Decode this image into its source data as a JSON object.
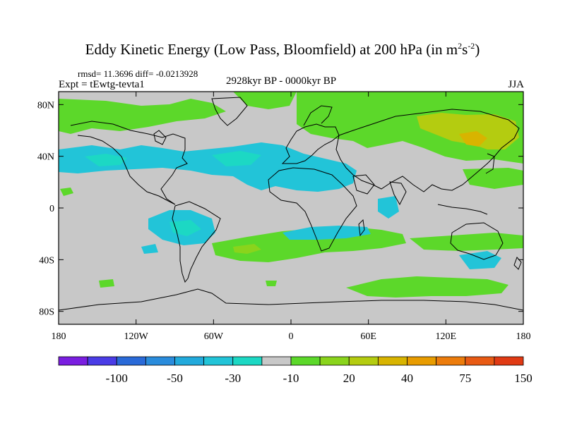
{
  "title": {
    "text": "Eddy Kinetic Energy (Low Pass, Bloomfield) at 200 hPa (in m",
    "sup1": "2",
    "mid": "s",
    "sup2": "-2",
    "end": ")"
  },
  "stats": "rmsd= 11.3696 diff= -0.0213928",
  "experiment": "Expt = tEwtg-tevta1",
  "period": "2928kyr BP - 0000kyr BP",
  "season": "JJA",
  "map": {
    "type": "cylindrical-equidistant global filled contour map",
    "lat_range": [
      -90,
      90
    ],
    "lon_range": [
      -180,
      180
    ],
    "background_color": "#c8c8c8",
    "coastline_color": "#000000",
    "lat_ticks": [
      {
        "value": 80,
        "label": "80N"
      },
      {
        "value": 40,
        "label": "40N"
      },
      {
        "value": 0,
        "label": "0"
      },
      {
        "value": -40,
        "label": "40S"
      },
      {
        "value": -80,
        "label": "80S"
      }
    ],
    "lon_ticks": [
      {
        "value": -180,
        "label": "180"
      },
      {
        "value": -120,
        "label": "120W"
      },
      {
        "value": -60,
        "label": "60W"
      },
      {
        "value": 0,
        "label": "0"
      },
      {
        "value": 60,
        "label": "60E"
      },
      {
        "value": 120,
        "label": "120E"
      },
      {
        "value": 180,
        "label": "180"
      }
    ]
  },
  "colorbar": {
    "colors": [
      "#7a1ee0",
      "#4a3ce6",
      "#2a6ad8",
      "#2a8cdc",
      "#22aadc",
      "#22c4d8",
      "#1cd8c4",
      "#c8c8c8",
      "#5cd82a",
      "#8ad41c",
      "#b4cc10",
      "#d8b400",
      "#e89c00",
      "#ec7c0c",
      "#e85a14",
      "#e03a14"
    ],
    "labels": [
      "-100",
      "-50",
      "-30",
      "-10",
      "20",
      "40",
      "75",
      "150"
    ]
  }
}
